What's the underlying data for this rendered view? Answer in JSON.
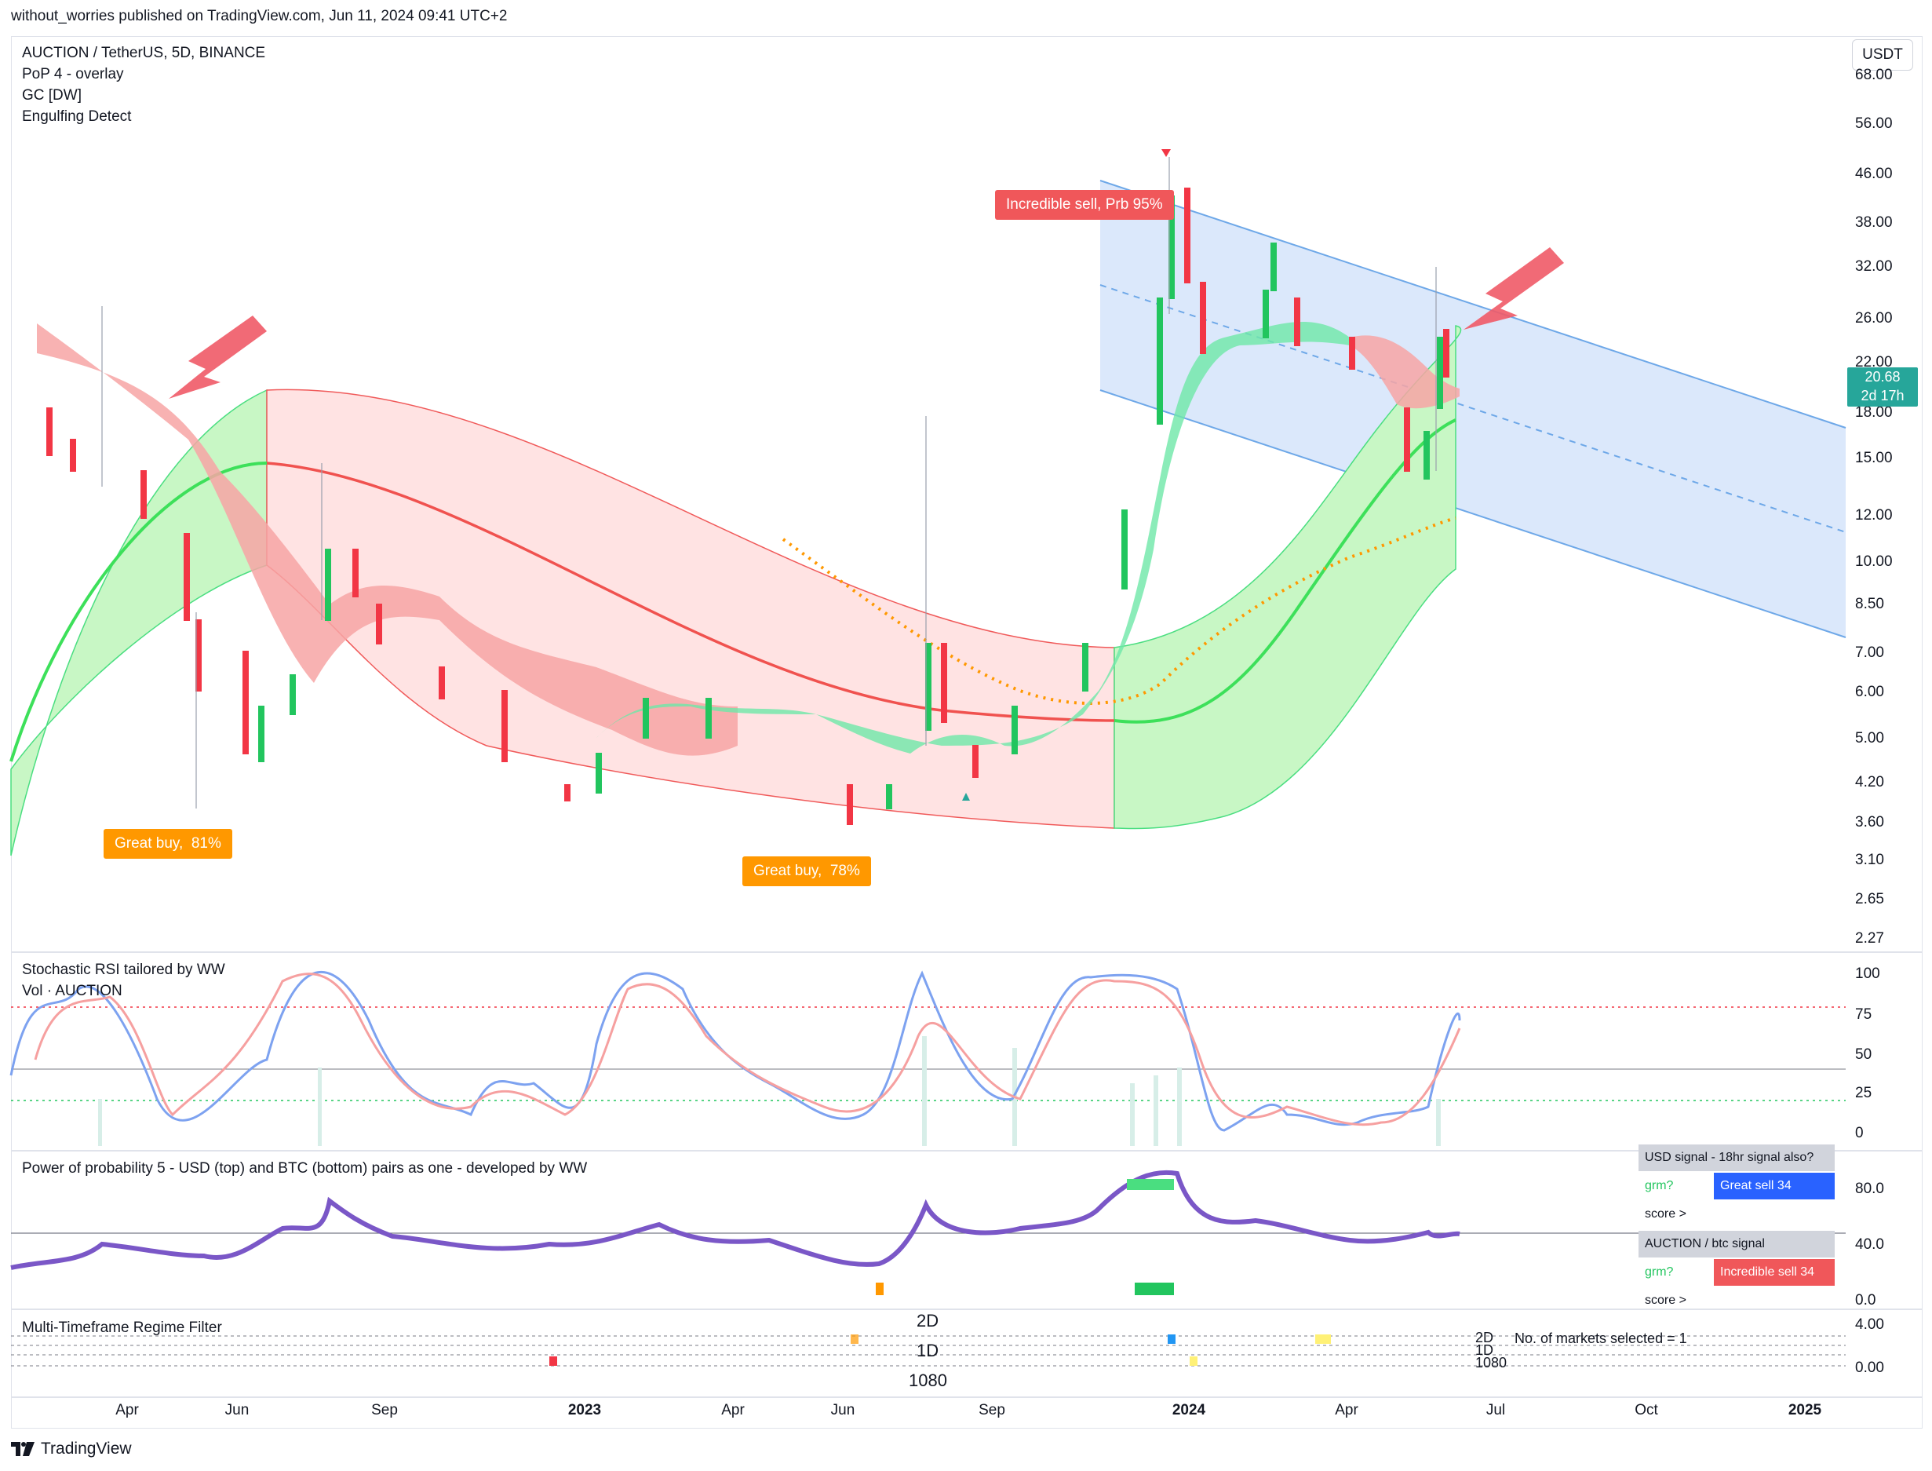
{
  "header": {
    "published": "without_worries published on TradingView.com, Jun 11, 2024 09:41 UTC+2"
  },
  "legend": {
    "symbol": "AUCTION / TetherUS, 5D, BINANCE",
    "ind1": "PoP 4 - overlay",
    "ind2": "GC [DW]",
    "ind3": "Engulfing Detect"
  },
  "currency_button": "USDT",
  "price_axis": [
    "68.00",
    "56.00",
    "46.00",
    "38.00",
    "32.00",
    "26.00",
    "22.00",
    "18.00",
    "15.00",
    "12.00",
    "10.00",
    "8.50",
    "7.00",
    "6.00",
    "5.00",
    "4.20",
    "3.60",
    "3.10",
    "2.65",
    "2.27"
  ],
  "last_price": {
    "value": "20.68",
    "countdown": "2d 17h"
  },
  "callouts": {
    "sell": "Incredible sell, Prb 95%",
    "buy1": "Great buy,  81%",
    "buy2": "Great buy,  78%"
  },
  "stoch_panel": {
    "title": "Stochastic RSI tailored by WW",
    "subtitle": "Vol · AUCTION",
    "axis": [
      "100",
      "75",
      "50",
      "25",
      "0"
    ]
  },
  "pop_panel": {
    "title": "Power of probability 5 - USD (top) and BTC (bottom) pairs as one - developed by WW",
    "axis": [
      "80.0",
      "40.0",
      "0.0"
    ],
    "table": {
      "usd_header": "USD signal - 18hr signal also?",
      "usd_label": "grm?",
      "usd_value": "Great sell 34",
      "usd_score": "score >",
      "btc_header": "AUCTION / btc signal",
      "btc_label": "grm?",
      "btc_value": "Incredible sell 34",
      "btc_score": "score >"
    }
  },
  "mtf_panel": {
    "title": "Multi-Timeframe Regime Filter",
    "center_labels": [
      "2D",
      "1D",
      "1080"
    ],
    "right_labels": [
      "2D",
      "1D",
      "1080"
    ],
    "markets_note": "No. of markets selected = 1",
    "axis": [
      "4.00",
      "0.00"
    ]
  },
  "time_axis": [
    {
      "label": "Apr",
      "bold": false
    },
    {
      "label": "Jun",
      "bold": false
    },
    {
      "label": "Sep",
      "bold": false
    },
    {
      "label": "2023",
      "bold": true
    },
    {
      "label": "Apr",
      "bold": false
    },
    {
      "label": "Jun",
      "bold": false
    },
    {
      "label": "Sep",
      "bold": false
    },
    {
      "label": "2024",
      "bold": true
    },
    {
      "label": "Apr",
      "bold": false
    },
    {
      "label": "Jul",
      "bold": false
    },
    {
      "label": "Oct",
      "bold": false
    },
    {
      "label": "2025",
      "bold": true
    }
  ],
  "footer": {
    "brand": "TradingView"
  },
  "colors": {
    "up": "#22c55e",
    "down": "#f23645",
    "channel": "#2962ff",
    "band_green": "#c8f7c5",
    "band_red": "#ffdcdc",
    "accent_teal": "#26a69a"
  }
}
